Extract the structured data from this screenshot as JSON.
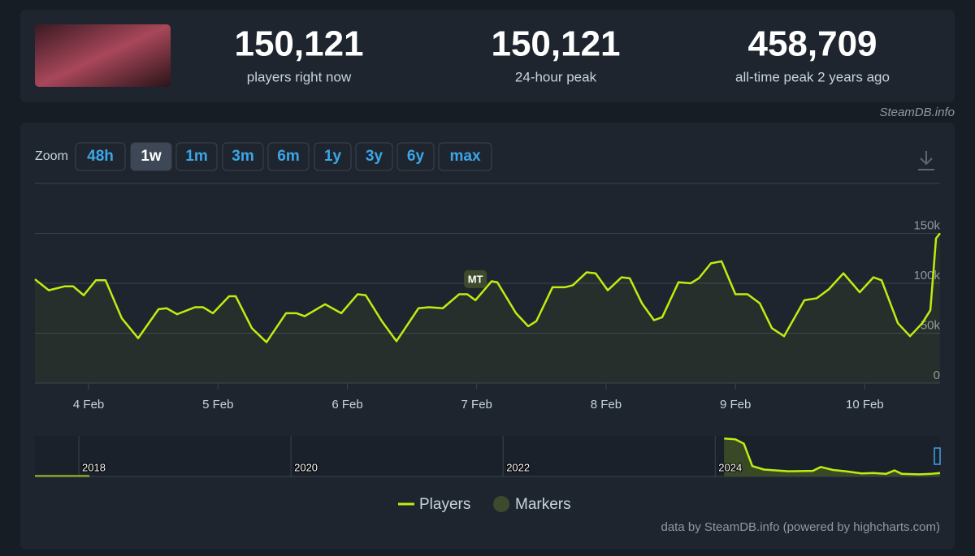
{
  "header": {
    "stats": [
      {
        "value": "150,121",
        "label": "players right now"
      },
      {
        "value": "150,121",
        "label": "24-hour peak"
      },
      {
        "value": "458,709",
        "label": "all-time peak 2 years ago"
      }
    ],
    "source": "SteamDB.info"
  },
  "zoom": {
    "label": "Zoom",
    "buttons": [
      "48h",
      "1w",
      "1m",
      "3m",
      "6m",
      "1y",
      "3y",
      "6y",
      "max"
    ],
    "active": "1w"
  },
  "chart_data": {
    "type": "line",
    "x": [
      3.585,
      3.692,
      3.817,
      3.88,
      3.962,
      4.056,
      4.131,
      4.256,
      4.383,
      4.54,
      4.603,
      4.684,
      4.822,
      4.885,
      4.961,
      5.086,
      5.137,
      5.262,
      5.375,
      5.526,
      5.608,
      5.67,
      5.828,
      5.953,
      6.079,
      6.142,
      6.267,
      6.38,
      6.55,
      6.632,
      6.738,
      6.864,
      6.927,
      6.99,
      7.115,
      7.159,
      7.304,
      7.398,
      7.461,
      7.586,
      7.681,
      7.743,
      7.85,
      7.919,
      8.013,
      8.12,
      8.183,
      8.277,
      8.371,
      8.434,
      8.56,
      8.654,
      8.717,
      8.811,
      8.893,
      9.0,
      9.094,
      9.188,
      9.282,
      9.376,
      9.533,
      9.628,
      9.722,
      9.835,
      9.961,
      10.067,
      10.13,
      10.256,
      10.35,
      10.444,
      10.507,
      10.551,
      10.582
    ],
    "series": [
      {
        "name": "Players",
        "color": "#beee11",
        "values": [
          104000,
          93000,
          97000,
          97000,
          88000,
          103000,
          103000,
          65000,
          45000,
          74000,
          75000,
          69000,
          76000,
          76000,
          70000,
          87000,
          87000,
          55000,
          41000,
          70000,
          70000,
          67000,
          79000,
          70000,
          89000,
          88000,
          62000,
          42000,
          75000,
          76000,
          75000,
          89000,
          89000,
          83000,
          102000,
          101000,
          70000,
          57000,
          62000,
          96000,
          96000,
          98000,
          111000,
          110000,
          93000,
          106000,
          105000,
          80000,
          63000,
          66000,
          101000,
          100000,
          105000,
          120000,
          122000,
          89000,
          89000,
          80000,
          55000,
          47000,
          83000,
          85000,
          94000,
          110000,
          91000,
          106000,
          103000,
          60000,
          47000,
          60000,
          73000,
          145000,
          150121
        ]
      }
    ],
    "xlim": [
      3.585,
      10.582
    ],
    "xticks": [
      {
        "value": 4,
        "label": "4 Feb"
      },
      {
        "value": 5,
        "label": "5 Feb"
      },
      {
        "value": 6,
        "label": "6 Feb"
      },
      {
        "value": 7,
        "label": "7 Feb"
      },
      {
        "value": 8,
        "label": "8 Feb"
      },
      {
        "value": 9,
        "label": "9 Feb"
      },
      {
        "value": 10,
        "label": "10 Feb"
      }
    ],
    "ylim": [
      0,
      200000
    ],
    "yticks": [
      {
        "value": 0,
        "label": "0"
      },
      {
        "value": 50000,
        "label": "50k"
      },
      {
        "value": 100000,
        "label": "100k"
      },
      {
        "value": 150000,
        "label": "150k"
      }
    ],
    "grid": true,
    "markers": {
      "name": "Markers",
      "color": "#3e4a2c",
      "items": [
        {
          "label": "MT",
          "x": 6.99
        }
      ]
    },
    "navigator": {
      "x": [
        2017.586,
        2018.1,
        2021,
        2024.084,
        2024.19,
        2024.27,
        2024.35,
        2024.46,
        2024.69,
        2024.92,
        2024.996,
        2025.11,
        2025.23,
        2025.38,
        2025.49,
        2025.61,
        2025.69,
        2025.76,
        2025.92,
        2026.03,
        2026.12
      ],
      "values": [
        3000,
        3000,
        null,
        440000,
        430000,
        380000,
        120000,
        80000,
        60000,
        65000,
        110000,
        75000,
        60000,
        35000,
        40000,
        30000,
        70000,
        30000,
        25000,
        30000,
        40000
      ],
      "xlim": [
        2017.586,
        2026.12
      ],
      "ylim": [
        0,
        470000
      ],
      "xticks": [
        2018,
        2020,
        2022,
        2024
      ]
    },
    "credit": "data by SteamDB.info (powered by highcharts.com)"
  }
}
